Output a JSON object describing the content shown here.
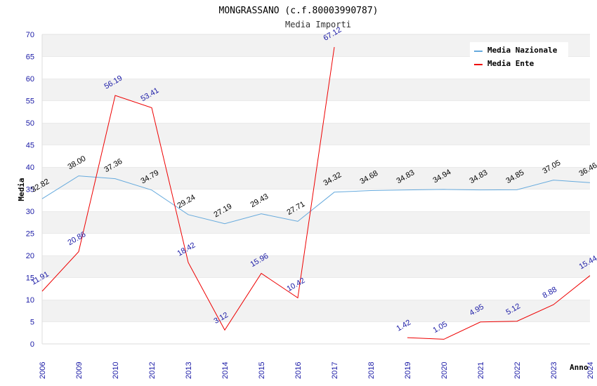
{
  "chart_data": {
    "type": "line",
    "title": "MONGRASSANO (c.f.80003990787)",
    "subtitle": "Media Importi",
    "xlabel": "Anno",
    "ylabel": "Media",
    "ylim": [
      0,
      70
    ],
    "ytick_step": 5,
    "grid": "horizontal bands",
    "legend_position": "top-right",
    "categories": [
      "2006",
      "2009",
      "2010",
      "2012",
      "2013",
      "2014",
      "2015",
      "2016",
      "2017",
      "2018",
      "2019",
      "2020",
      "2021",
      "2022",
      "2023",
      "2024"
    ],
    "series": [
      {
        "name": "Media Nazionale",
        "color": "#66aadd",
        "labels": [
          "32.82",
          "38.00",
          "37.36",
          "34.79",
          "29.24",
          "27.19",
          "29.43",
          "27.71",
          "34.32",
          "34.68",
          "34.83",
          "34.94",
          "34.83",
          "34.85",
          "37.05",
          "36.46"
        ]
      },
      {
        "name": "Media Ente",
        "color": "#ee0000",
        "labels": [
          "11.91",
          "20.86",
          "56.19",
          "53.41",
          "18.42",
          "3.12",
          "15.96",
          "10.42",
          "67.12",
          null,
          "1.42",
          "1.05",
          "4.95",
          "5.12",
          "8.88",
          "15.44"
        ]
      }
    ]
  }
}
